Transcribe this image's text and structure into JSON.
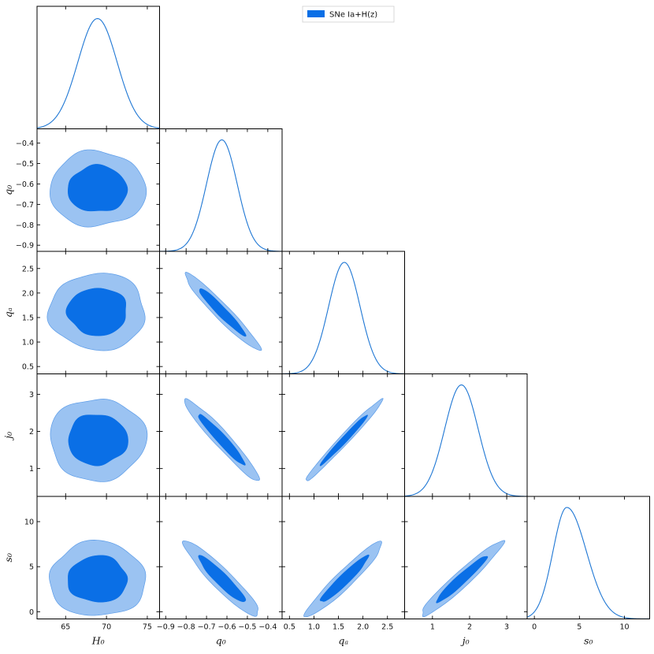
{
  "chart_data": {
    "type": "corner",
    "title": "",
    "legend": {
      "label": "SNe Ia+H(z)",
      "placement": "top"
    },
    "colors": {
      "line": "#1f77d4",
      "inner": "#0a6fe6",
      "outer": "#9bc3f2",
      "edge": "#5a9be8",
      "frame": "#000000"
    },
    "parameters": [
      {
        "name": "H0",
        "label": "H₀",
        "range": [
          61.5,
          76.5
        ],
        "ticks": [
          65,
          70,
          75
        ],
        "tick_labels": [
          "65",
          "70",
          "75"
        ],
        "mean": 68.9,
        "sigma": 2.4
      },
      {
        "name": "q0",
        "label": "q₀",
        "range": [
          -0.93,
          -0.33
        ],
        "ticks": [
          -0.9,
          -0.8,
          -0.7,
          -0.6,
          -0.5,
          -0.4
        ],
        "tick_labels": [
          "−0.9",
          "−0.8",
          "−0.7",
          "−0.6",
          "−0.5",
          "−0.4"
        ],
        "mean": -0.625,
        "sigma": 0.075
      },
      {
        "name": "qa",
        "label": "qₐ",
        "range": [
          0.35,
          2.85
        ],
        "ticks": [
          0.5,
          1.0,
          1.5,
          2.0,
          2.5
        ],
        "tick_labels": [
          "0.5",
          "1.0",
          "1.5",
          "2.0",
          "2.5"
        ],
        "mean": 1.62,
        "sigma": 0.32
      },
      {
        "name": "j0",
        "label": "j₀",
        "range": [
          0.25,
          3.55
        ],
        "ticks": [
          1,
          2,
          3
        ],
        "tick_labels": [
          "1",
          "2",
          "3"
        ],
        "mean": 1.78,
        "sigma": 0.45
      },
      {
        "name": "s0",
        "label": "s₀",
        "range": [
          -0.8,
          12.8
        ],
        "ticks": [
          0,
          5,
          10
        ],
        "tick_labels": [
          "0",
          "5",
          "10"
        ],
        "mean": 3.6,
        "sigma": 1.7
      }
    ],
    "correlations": [
      [
        1.0,
        0.0,
        0.0,
        0.0,
        0.0
      ],
      [
        0.0,
        1.0,
        -0.96,
        -0.96,
        -0.93
      ],
      [
        0.0,
        -0.96,
        1.0,
        0.985,
        0.95
      ],
      [
        0.0,
        -0.96,
        0.985,
        1.0,
        0.96
      ],
      [
        0.0,
        -0.93,
        0.95,
        0.96,
        1.0
      ]
    ],
    "contour_levels": [
      "68%",
      "95%"
    ]
  }
}
